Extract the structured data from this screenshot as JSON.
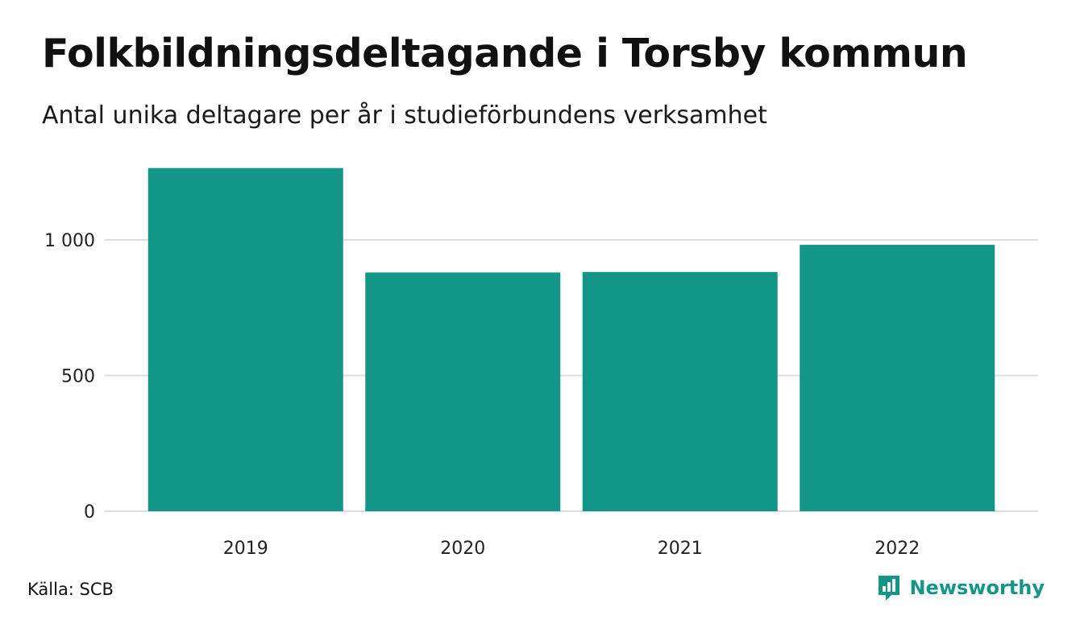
{
  "header": {
    "title": "Folkbildningsdeltagande i Torsby kommun",
    "subtitle": "Antal unika deltagare per år i studieförbundens verksamhet"
  },
  "footer": {
    "source": "Källa: SCB",
    "brand": "Newsworthy"
  },
  "colors": {
    "bar": "#139588",
    "grid": "#dddddd",
    "brand": "#139588"
  },
  "icons": {
    "brand_logo": "bar-chart-speech-bubble-icon"
  },
  "chart_data": {
    "type": "bar",
    "title": "Folkbildningsdeltagande i Torsby kommun",
    "subtitle": "Antal unika deltagare per år i studieförbundens verksamhet",
    "categories": [
      "2019",
      "2020",
      "2021",
      "2022"
    ],
    "values": [
      1265,
      880,
      882,
      982
    ],
    "xlabel": "",
    "ylabel": "",
    "ylim": [
      0,
      1300
    ],
    "yticks": [
      0,
      500,
      1000
    ],
    "ytick_labels": [
      "0",
      "500",
      "1 000"
    ],
    "grid": true,
    "legend": "none"
  }
}
